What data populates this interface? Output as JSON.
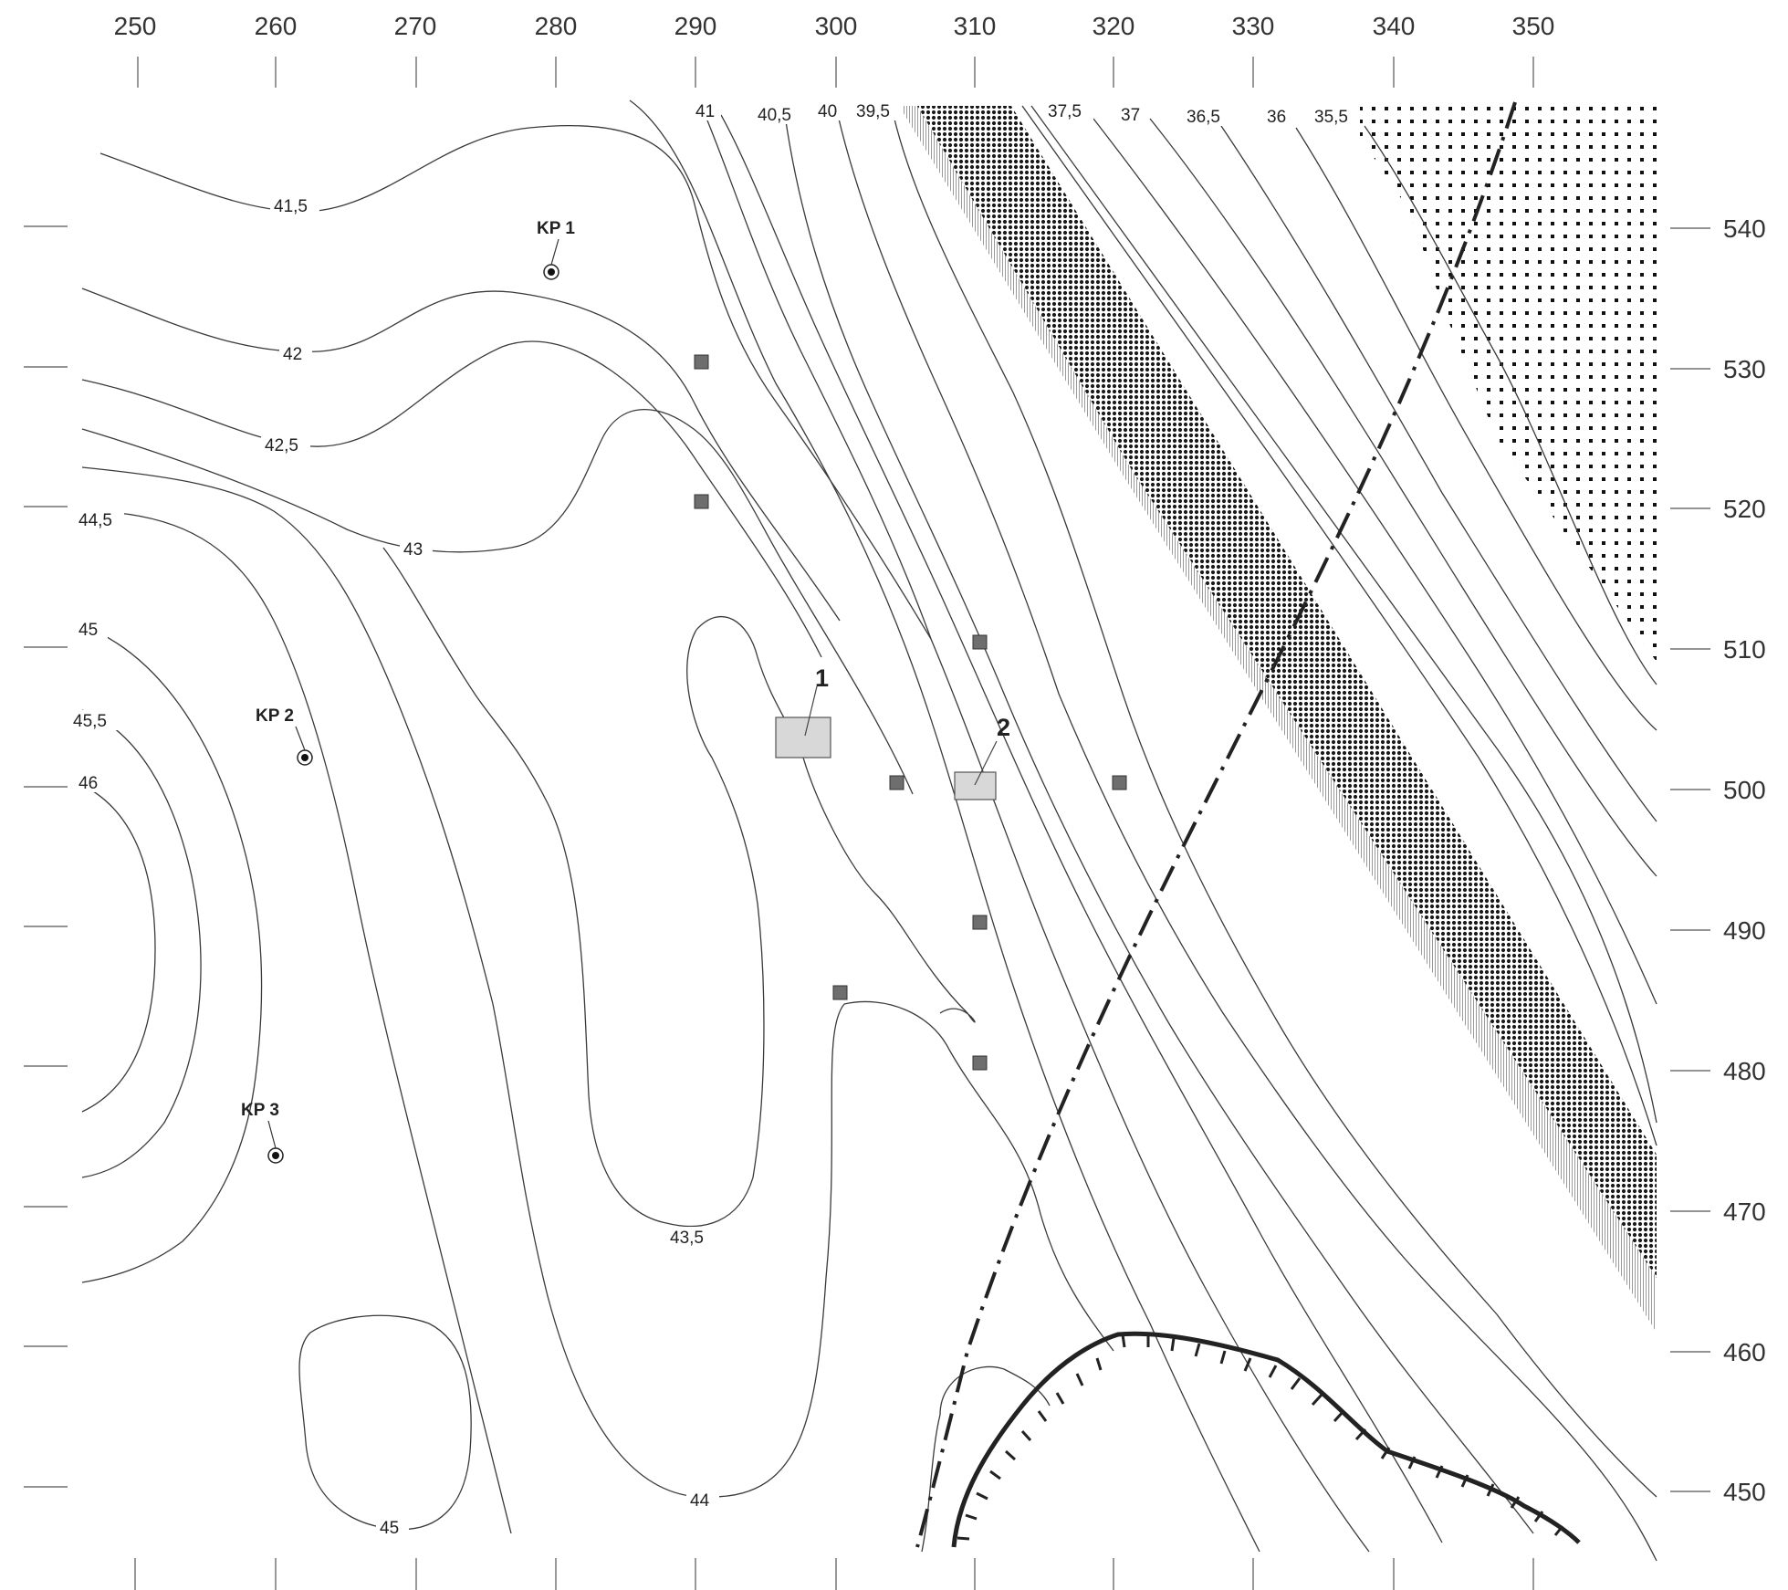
{
  "axes": {
    "x_top": [
      "250",
      "260",
      "270",
      "280",
      "290",
      "300",
      "310",
      "320",
      "330",
      "340",
      "350"
    ],
    "y_right": [
      "540",
      "530",
      "520",
      "510",
      "500",
      "490",
      "480",
      "470",
      "460",
      "450"
    ]
  },
  "contour_labels": {
    "c41": "41",
    "c40_5": "40,5",
    "c40": "40",
    "c39_5": "39,5",
    "c37_5": "37,5",
    "c37": "37",
    "c36_5": "36,5",
    "c36": "36",
    "c35_5": "35,5",
    "c41_5": "41,5",
    "c42": "42",
    "c42_5": "42,5",
    "c43": "43",
    "c43_5": "43,5",
    "c44": "44",
    "c44_5": "44,5",
    "c45_left": "45",
    "c45_5": "45,5",
    "c46": "46",
    "c45_bottom": "45"
  },
  "control_points": {
    "kp1": "KP 1",
    "kp2": "KP 2",
    "kp3": "KP 3"
  },
  "buildings": {
    "b1": "1",
    "b2": "2"
  },
  "colors": {
    "contour": "#3a3a3a",
    "building_fill": "#d8d8d8",
    "marker_fill": "#6e6e6e",
    "dense_band": "#222222",
    "dot_area": "#111111"
  }
}
